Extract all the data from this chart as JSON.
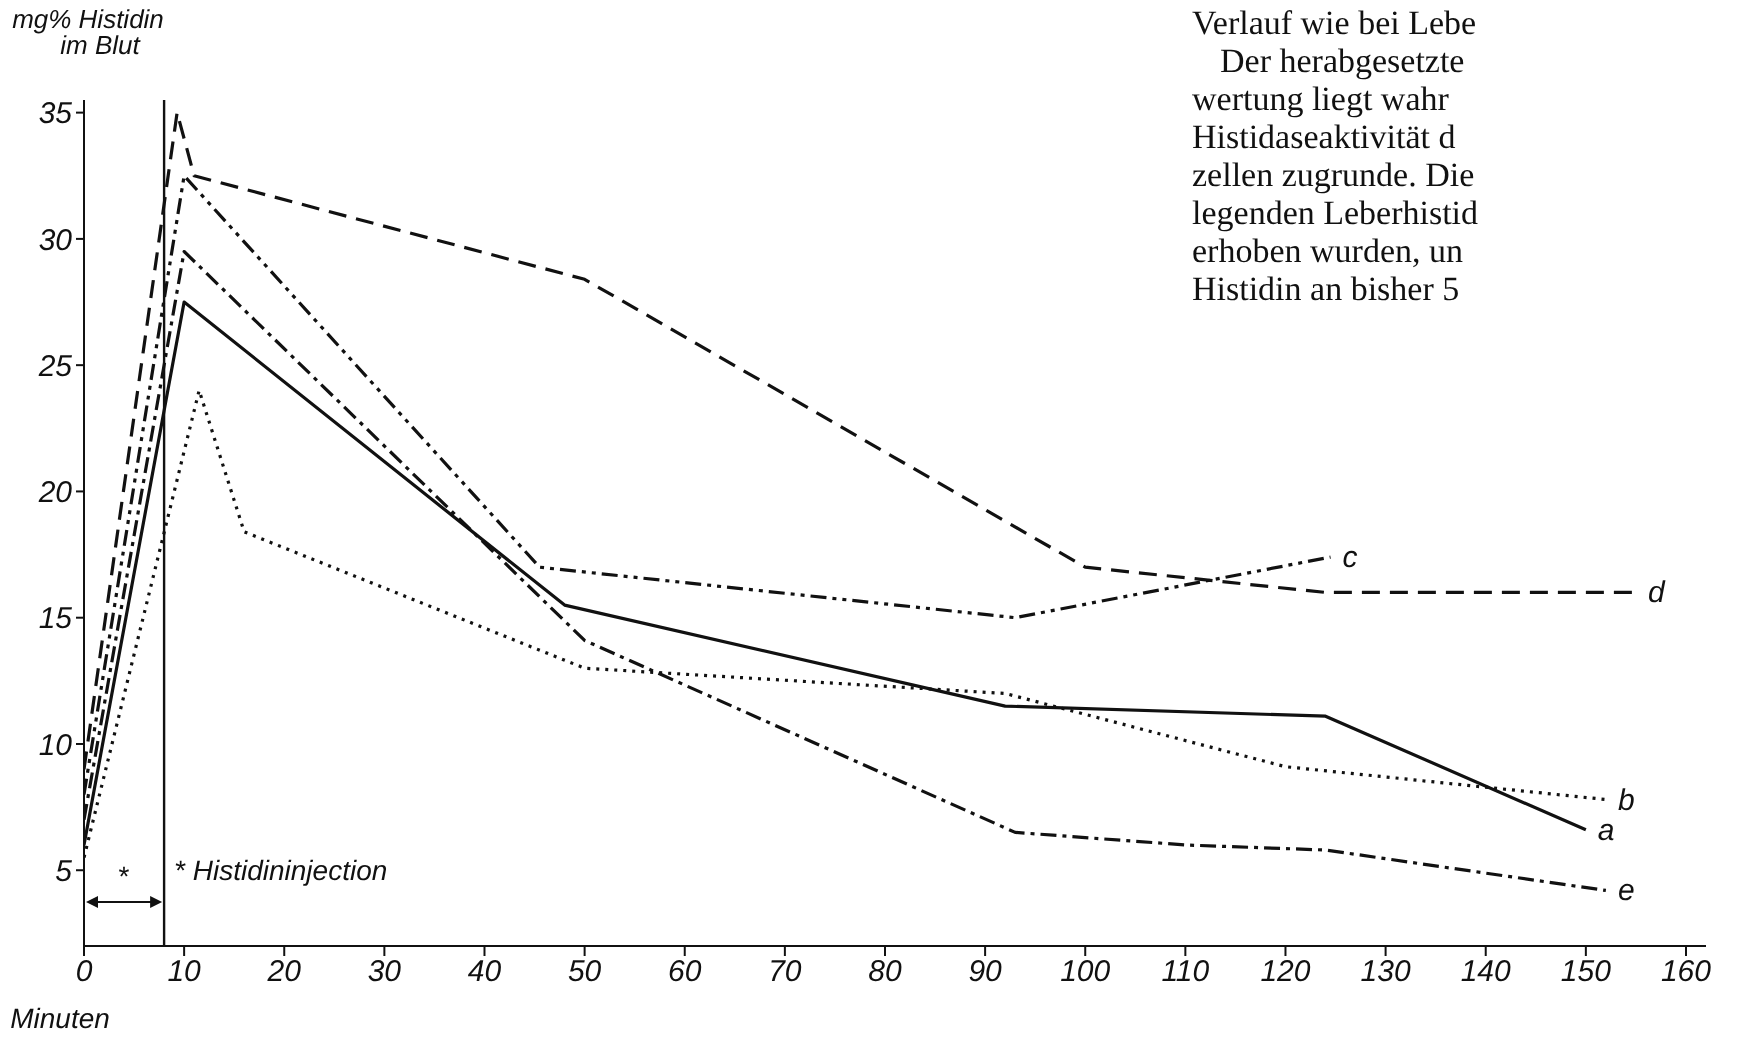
{
  "chart_data": {
    "type": "line",
    "ylabel": "mg% Histidin\nim Blut",
    "xlabel": "Minuten",
    "xlim": [
      0,
      162
    ],
    "ylim": [
      2,
      35.5
    ],
    "xticks": [
      0,
      10,
      20,
      30,
      40,
      50,
      60,
      70,
      80,
      90,
      100,
      110,
      120,
      130,
      140,
      150,
      160
    ],
    "yticks": [
      5,
      10,
      15,
      20,
      25,
      30,
      35
    ],
    "marker": "none",
    "series": [
      {
        "name": "a",
        "color": "#111111",
        "line_style": "solid",
        "x": [
          0,
          10,
          48,
          92,
          124,
          150
        ],
        "values": [
          6,
          27.5,
          15.5,
          11.5,
          11.1,
          6.6
        ]
      },
      {
        "name": "b",
        "color": "#111111",
        "line_style": "dotted",
        "x": [
          0,
          11.5,
          16,
          50,
          92,
          120,
          152
        ],
        "values": [
          5.5,
          24,
          18.4,
          13,
          12,
          9.1,
          7.8
        ]
      },
      {
        "name": "c",
        "color": "#111111",
        "line_style": "dashdotdot",
        "x": [
          0,
          10,
          45.5,
          93,
          124.5
        ],
        "values": [
          8,
          32.5,
          17,
          15,
          17.4
        ]
      },
      {
        "name": "d",
        "color": "#111111",
        "line_style": "dashed",
        "x": [
          0,
          9.3,
          11,
          50,
          100,
          124,
          155
        ],
        "values": [
          9,
          35,
          32.5,
          28.4,
          17,
          16,
          16
        ]
      },
      {
        "name": "e",
        "color": "#111111",
        "line_style": "dashdot",
        "x": [
          0,
          10,
          50,
          93,
          110,
          124,
          152
        ],
        "values": [
          7,
          29.5,
          14.1,
          6.5,
          6,
          5.8,
          4.2
        ]
      }
    ],
    "ref_lines": [
      {
        "axis": "x",
        "value": 8,
        "label": "*"
      }
    ],
    "annotations": [
      "* Histidininjection",
      "Verlauf wie bei Lebe",
      "Der herabgesetzte",
      "wertung liegt wahr",
      "Histidaseaktivität d",
      "zellen zugrunde. Die",
      "legenden Leberhistid",
      "erhoben wurden, un",
      "Histidin an bisher 5"
    ]
  }
}
